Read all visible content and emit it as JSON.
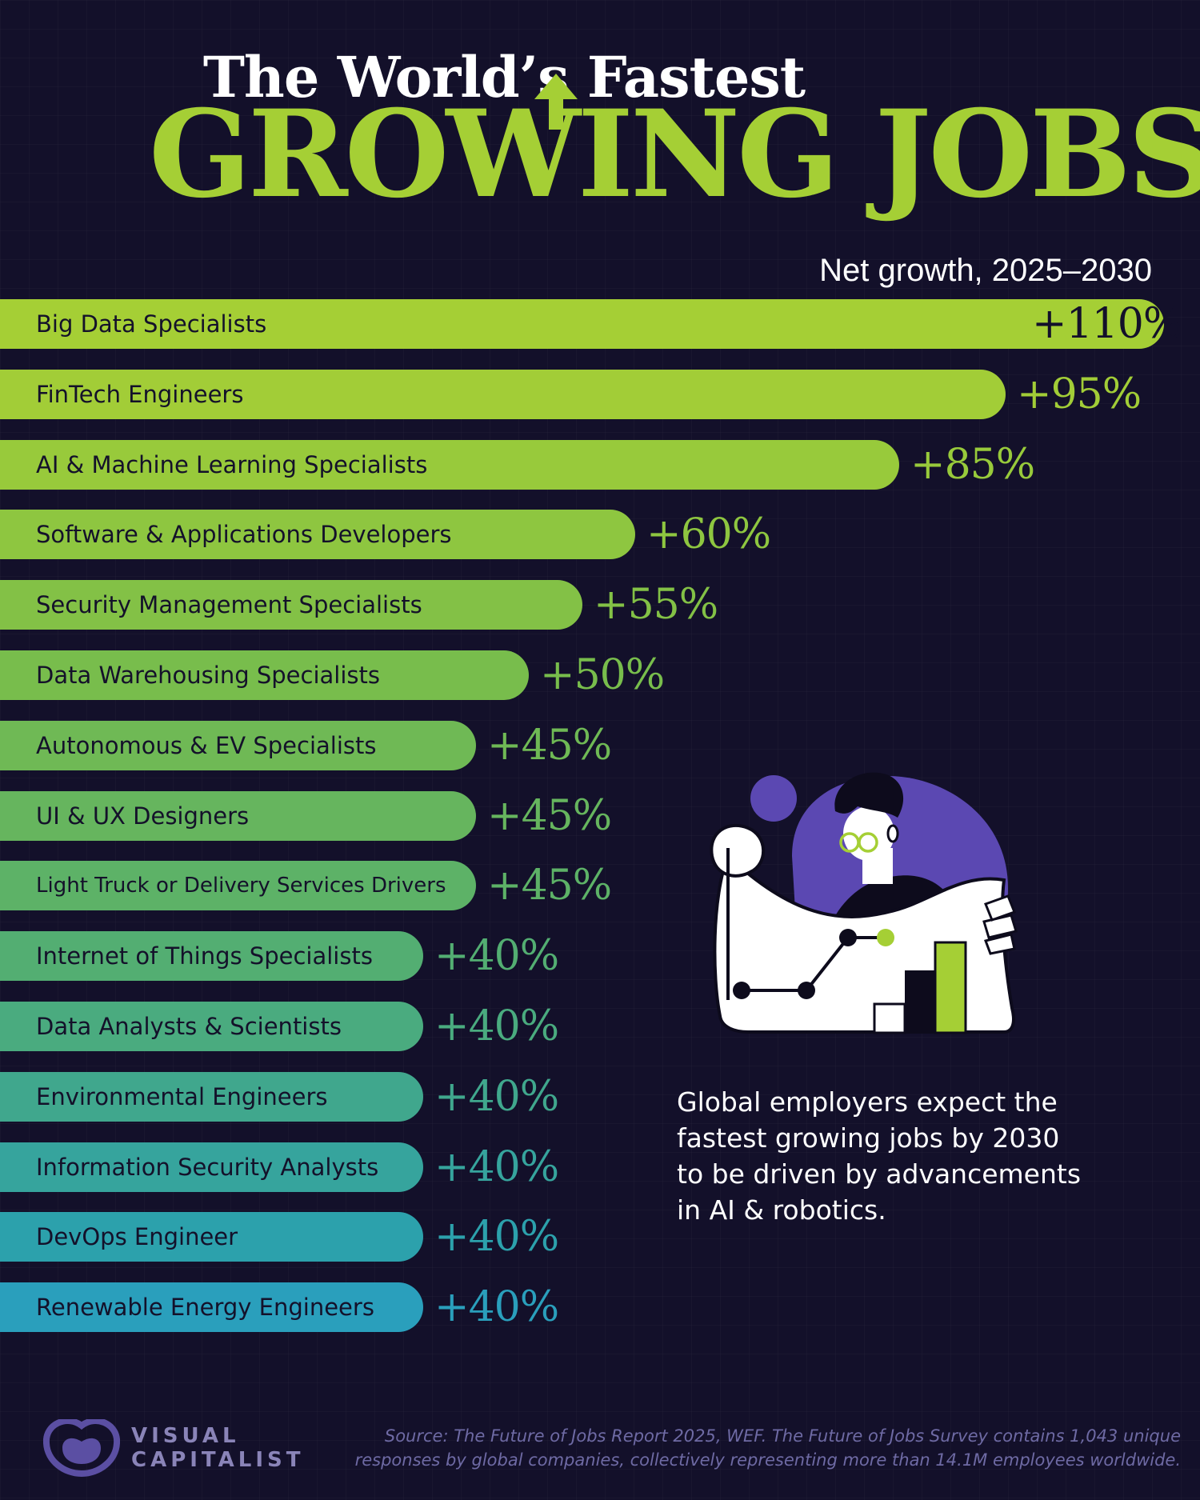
{
  "title": {
    "line1": "The World’s Fastest",
    "line2": "GROWING JOBS"
  },
  "chart_data": {
    "type": "bar",
    "orientation": "horizontal",
    "title": "The World’s Fastest Growing Jobs",
    "subtitle": "Net growth, 2025–2030",
    "categories": [
      "Big Data Specialists",
      "FinTech Engineers",
      "AI & Machine Learning Specialists",
      "Software & Applications Developers",
      "Security Management Specialists",
      "Data Warehousing Specialists",
      "Autonomous & EV Specialists",
      "UI & UX Designers",
      "Light Truck or Delivery Services Drivers",
      "Internet of Things Specialists",
      "Data Analysts & Scientists",
      "Environmental Engineers",
      "Information Security Analysts",
      "DevOps Engineer",
      "Renewable Energy Engineers"
    ],
    "values": [
      110,
      95,
      85,
      60,
      55,
      50,
      45,
      45,
      45,
      40,
      40,
      40,
      40,
      40,
      40
    ],
    "value_labels": [
      "+110%",
      "+95%",
      "+85%",
      "+60%",
      "+55%",
      "+50%",
      "+45%",
      "+45%",
      "+45%",
      "+40%",
      "+40%",
      "+40%",
      "+40%",
      "+40%",
      "+40%"
    ],
    "unit": "%",
    "colors": [
      "#a5cf35",
      "#a2cd37",
      "#98ca3b",
      "#8ec640",
      "#83c146",
      "#78bd4c",
      "#6fb955",
      "#66b55e",
      "#5db267",
      "#53ae72",
      "#4aab7f",
      "#40a78d",
      "#36a49d",
      "#2ca1ac",
      "#2a9fbc"
    ],
    "legend": false,
    "grid": false
  },
  "note": "Global employers expect the fastest growing jobs by 2030 to be driven by advancements in AI & robotics.",
  "logo": {
    "line1": "VISUAL",
    "line2": "CAPITALIST"
  },
  "source": {
    "line1": "Source: The Future of Jobs Report 2025, WEF. The Future of Jobs Survey contains 1,043 unique",
    "line2": "responses by global companies, collectively representing more than 14.1M employees worldwide."
  },
  "colors": {
    "background": "#13102a",
    "accent": "#a5cf35",
    "illustration_purple": "#5b48b2"
  }
}
